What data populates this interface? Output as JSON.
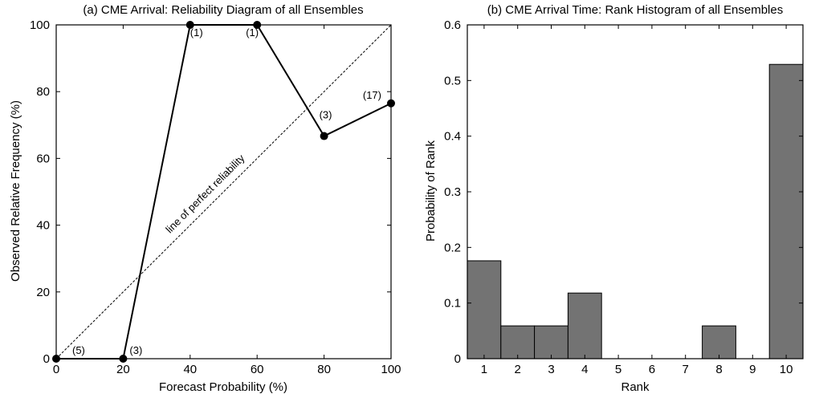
{
  "chart_data": [
    {
      "type": "line",
      "title": "(a) CME Arrival: Reliability Diagram of all Ensembles",
      "xlabel": "Forecast Probability (%)",
      "ylabel": "Observed Relative Frequency (%)",
      "xlim": [
        0,
        100
      ],
      "ylim": [
        0,
        100
      ],
      "xticks": [
        "0",
        "20",
        "40",
        "60",
        "80",
        "100"
      ],
      "yticks": [
        "0",
        "20",
        "40",
        "60",
        "80",
        "100"
      ],
      "grid": false,
      "series": [
        {
          "x": [
            0,
            20,
            40,
            60,
            80,
            100
          ],
          "y": [
            0,
            0,
            100,
            100,
            66.7,
            76.5
          ],
          "point_labels": [
            "(5)",
            "(3)",
            "(1)",
            "(1)",
            "(3)",
            "(17)"
          ],
          "color": "#000000"
        }
      ],
      "reference_line": {
        "label": "line of perfect reliability",
        "x": [
          0,
          100
        ],
        "y": [
          0,
          100
        ]
      }
    },
    {
      "type": "bar",
      "title": "(b) CME Arrival Time: Rank Histogram of all Ensembles",
      "xlabel": "Rank",
      "ylabel": "Probability of Rank",
      "categories": [
        "1",
        "2",
        "3",
        "4",
        "5",
        "6",
        "7",
        "8",
        "9",
        "10"
      ],
      "values": [
        0.176,
        0.059,
        0.059,
        0.118,
        0,
        0,
        0,
        0.059,
        0,
        0.529
      ],
      "ylim": [
        0,
        0.6
      ],
      "yticks": [
        "0",
        "0.1",
        "0.2",
        "0.3",
        "0.4",
        "0.5",
        "0.6"
      ],
      "grid": false,
      "bar_color": "#737373"
    }
  ]
}
